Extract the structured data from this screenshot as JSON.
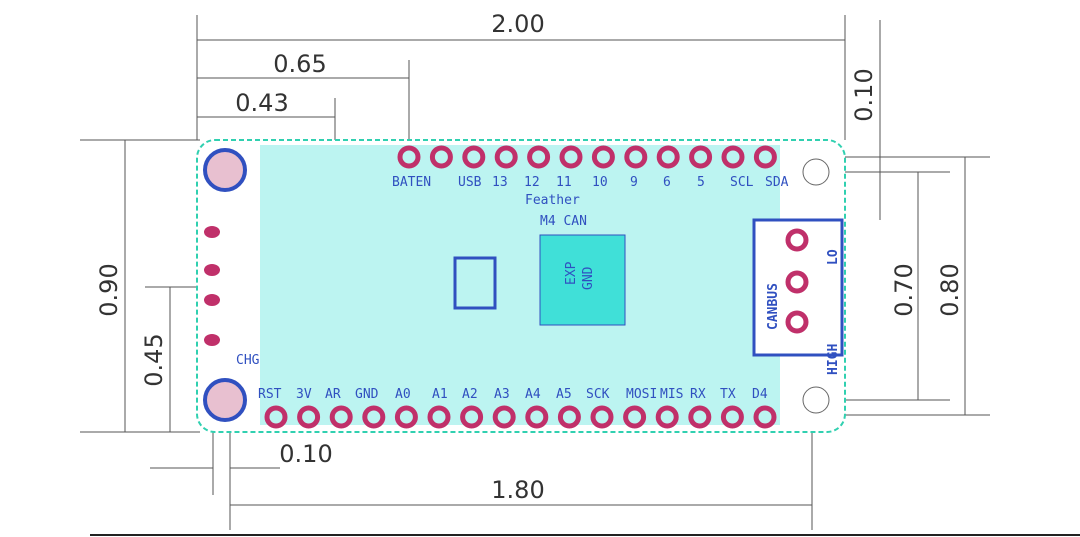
{
  "dimensions": {
    "width_total": "2.00",
    "first_pin_offset": "0.65",
    "component_offset": "0.43",
    "top_hole_offset": "0.10",
    "board_height": "0.90",
    "half_height": "0.45",
    "hole_spacing_vertical": "0.70",
    "header_spacing": "0.80",
    "left_hole_offset": "0.10",
    "hole_spacing_horizontal": "1.80"
  },
  "board": {
    "top_pins": [
      "BATEN",
      "USB",
      "13",
      "12",
      "11",
      "10",
      "9",
      "6",
      "5",
      "SCL",
      "SDA"
    ],
    "bottom_pins": [
      "RST",
      "3V",
      "AR",
      "GND",
      "A0",
      "A1",
      "A2",
      "A3",
      "A4",
      "A5",
      "SCK",
      "MOSI",
      "MIS",
      "RX",
      "TX",
      "D4"
    ],
    "title_line1": "Feather",
    "title_line2": "M4 CAN",
    "chip_label_1": "EXP",
    "chip_label_2": "GND",
    "chg_label": "CHG",
    "canbus_label": "CANBUS",
    "high_label": "HIGH",
    "lo_label": "LO"
  },
  "colors": {
    "pad": "#c0306a",
    "copper_top": "#40e0d8",
    "silk": "#3050c0",
    "trace_yellow": "#f0f060",
    "outline": "#30d0b0"
  }
}
